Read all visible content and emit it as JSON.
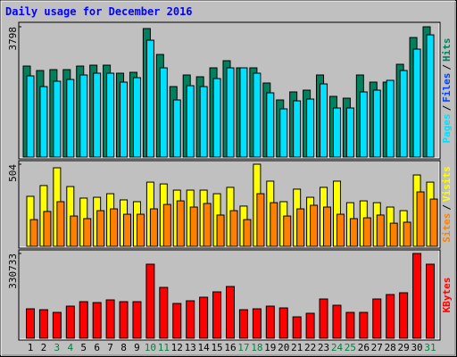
{
  "title": "Daily usage for December 2016",
  "legend_separator": "/",
  "chart_data": [
    {
      "type": "bar",
      "ylim": [
        0,
        3798
      ],
      "yticks": [
        3798
      ],
      "series": [
        {
          "name": "Pages",
          "color": "#00e0ff",
          "values": [
            2367,
            2055,
            2211,
            2263,
            2393,
            2445,
            2445,
            2185,
            2315,
            3407,
            2601,
            1665,
            2081,
            2055,
            2289,
            2601,
            2601,
            2445,
            1873,
            1405,
            1639,
            1691,
            2133,
            1431,
            1431,
            1899,
            1951,
            2237,
            2523,
            3147,
            3563
          ]
        },
        {
          "name": "Files",
          "color": "#0040ff"
        },
        {
          "name": "Hits",
          "color": "#00805c",
          "values": [
            2653,
            2523,
            2549,
            2549,
            2653,
            2679,
            2679,
            2445,
            2471,
            3746,
            2991,
            2055,
            2393,
            2341,
            2601,
            2809,
            2601,
            2601,
            2159,
            1665,
            1899,
            1951,
            2393,
            1769,
            1717,
            2393,
            2185,
            2185,
            2705,
            3485,
            3798
          ]
        }
      ]
    },
    {
      "type": "bar",
      "ylim": [
        0,
        504
      ],
      "yticks": [
        504
      ],
      "series": [
        {
          "name": "Sites",
          "color": "#ff8000",
          "values": [
            164,
            214,
            274,
            186,
            170,
            219,
            230,
            197,
            197,
            230,
            257,
            279,
            241,
            263,
            192,
            219,
            164,
            323,
            268,
            186,
            230,
            252,
            241,
            197,
            170,
            175,
            192,
            142,
            148,
            334,
            290
          ]
        },
        {
          "name": "Visits",
          "color": "#ffff00",
          "values": [
            307,
            373,
            482,
            367,
            296,
            301,
            323,
            285,
            274,
            394,
            383,
            345,
            345,
            345,
            323,
            362,
            247,
            504,
            400,
            274,
            351,
            301,
            362,
            400,
            268,
            279,
            268,
            241,
            219,
            438,
            394
          ]
        }
      ]
    },
    {
      "type": "bar",
      "ylim": [
        0,
        330733
      ],
      "yticks": [
        330733
      ],
      "categories": [
        "1",
        "2",
        "3",
        "4",
        "5",
        "6",
        "7",
        "8",
        "9",
        "10",
        "11",
        "12",
        "13",
        "14",
        "15",
        "16",
        "17",
        "18",
        "19",
        "20",
        "21",
        "22",
        "23",
        "24",
        "25",
        "26",
        "27",
        "28",
        "29",
        "30",
        "31"
      ],
      "category_colors": [
        "#000000",
        "#000000",
        "#008040",
        "#008040",
        "#000000",
        "#000000",
        "#000000",
        "#000000",
        "#000000",
        "#008040",
        "#008040",
        "#000000",
        "#000000",
        "#000000",
        "#000000",
        "#000000",
        "#008040",
        "#008040",
        "#000000",
        "#000000",
        "#000000",
        "#000000",
        "#000000",
        "#008040",
        "#008040",
        "#000000",
        "#000000",
        "#000000",
        "#000000",
        "#000000",
        "#008040"
      ],
      "series": [
        {
          "name": "KBytes",
          "color": "#ff0000",
          "values": [
            114873,
            111392,
            100949,
            125316,
            142721,
            139240,
            149683,
            142721,
            142721,
            288923,
            198417,
            135759,
            146202,
            160126,
            181012,
            201898,
            111392,
            114873,
            125316,
            118354,
            83544,
            97468,
            153164,
            128797,
            100949,
            100949,
            153164,
            170569,
            177531,
            330733,
            288923
          ]
        }
      ]
    }
  ]
}
